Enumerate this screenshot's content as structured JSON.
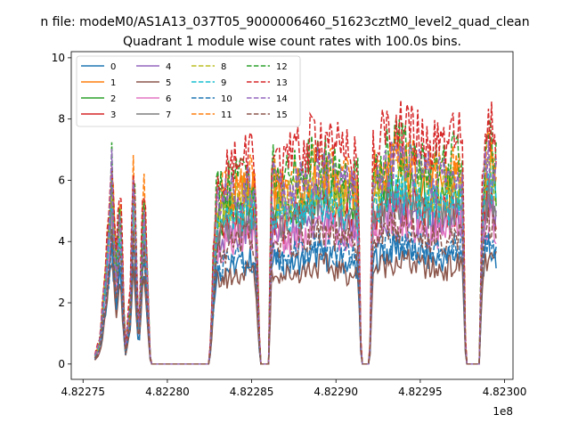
{
  "figure": {
    "suptitle": "n file: modeM0/AS1A13_037T05_9000006460_51623cztM0_level2_quad_clean",
    "offset_label": "1e8"
  },
  "chart_data": {
    "type": "line",
    "title": "Quadrant 1 module wise count rates with 100.0s bins.",
    "xlabel": "",
    "ylabel": "",
    "x_range": [
      482275000,
      482300000
    ],
    "x_offset_multiplier": 100000000,
    "xlim": [
      4.822743,
      4.823005
    ],
    "ylim": [
      -0.5,
      10.2
    ],
    "x_ticks": [
      "4.82275",
      "4.82280",
      "4.82285",
      "4.82290",
      "4.82295",
      "4.82300"
    ],
    "y_ticks": [
      "0",
      "2",
      "4",
      "6",
      "8",
      "10"
    ],
    "grid": false,
    "legend_position": "top-left",
    "legend_columns": 4,
    "series": [
      {
        "name": "0",
        "color": "#1f77b4",
        "dash": "solid",
        "level": 4.0
      },
      {
        "name": "1",
        "color": "#ff7f0e",
        "dash": "solid",
        "level": 6.9
      },
      {
        "name": "2",
        "color": "#2ca02c",
        "dash": "solid",
        "level": 6.3
      },
      {
        "name": "3",
        "color": "#d62728",
        "dash": "solid",
        "level": 5.6
      },
      {
        "name": "4",
        "color": "#9467bd",
        "dash": "solid",
        "level": 5.3
      },
      {
        "name": "5",
        "color": "#8c564b",
        "dash": "solid",
        "level": 3.6
      },
      {
        "name": "6",
        "color": "#e377c2",
        "dash": "solid",
        "level": 5.0
      },
      {
        "name": "7",
        "color": "#7f7f7f",
        "dash": "solid",
        "level": 5.8
      },
      {
        "name": "8",
        "color": "#bcbd22",
        "dash": "dashed",
        "level": 6.6
      },
      {
        "name": "9",
        "color": "#17becf",
        "dash": "dashed",
        "level": 6.0
      },
      {
        "name": "10",
        "color": "#1f77b4",
        "dash": "dashed",
        "level": 4.3
      },
      {
        "name": "11",
        "color": "#ff7f0e",
        "dash": "dashed",
        "level": 7.2
      },
      {
        "name": "12",
        "color": "#2ca02c",
        "dash": "dashed",
        "level": 7.5
      },
      {
        "name": "13",
        "color": "#d62728",
        "dash": "dashed",
        "level": 8.2
      },
      {
        "name": "14",
        "color": "#9467bd",
        "dash": "dashed",
        "level": 7.0
      },
      {
        "name": "15",
        "color": "#8c564b",
        "dash": "dashed",
        "level": 4.8
      }
    ]
  }
}
